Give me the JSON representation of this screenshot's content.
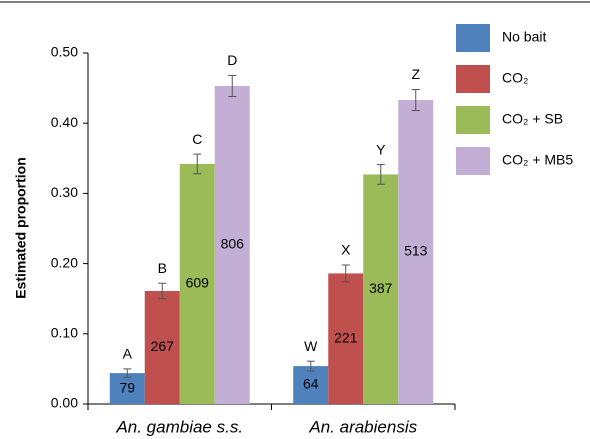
{
  "chart_data": {
    "type": "bar",
    "ylabel": "Estimated proportion",
    "categories": [
      "An. gambiae s.s.",
      "An. arabiensis"
    ],
    "series": [
      {
        "name": "No bait",
        "color": "#4f81bd",
        "values": [
          0.044,
          0.054
        ],
        "errors": [
          0.006,
          0.007
        ],
        "letters": [
          "A",
          "W"
        ],
        "n": [
          79,
          64
        ]
      },
      {
        "name": "CO₂",
        "color": "#c0504d",
        "values": [
          0.161,
          0.186
        ],
        "errors": [
          0.011,
          0.012
        ],
        "letters": [
          "B",
          "X"
        ],
        "n": [
          267,
          221
        ]
      },
      {
        "name": "CO₂ + SB",
        "color": "#9bbb59",
        "values": [
          0.342,
          0.327
        ],
        "errors": [
          0.014,
          0.014
        ],
        "letters": [
          "C",
          "Y"
        ],
        "n": [
          609,
          387
        ]
      },
      {
        "name": "CO₂ + MB5",
        "color": "#c3aed6",
        "values": [
          0.453,
          0.433
        ],
        "errors": [
          0.015,
          0.015
        ],
        "letters": [
          "D",
          "Z"
        ],
        "n": [
          806,
          513
        ]
      }
    ],
    "ylim": [
      0,
      0.5
    ],
    "yticks": [
      {
        "value": 0,
        "label": "0.00"
      },
      {
        "value": 0.1,
        "label": "0.10"
      },
      {
        "value": 0.2,
        "label": "0.20"
      },
      {
        "value": 0.3,
        "label": "0.30"
      },
      {
        "value": 0.4,
        "label": "0.40"
      },
      {
        "value": 0.5,
        "label": "0.50"
      }
    ],
    "legend": "right"
  }
}
